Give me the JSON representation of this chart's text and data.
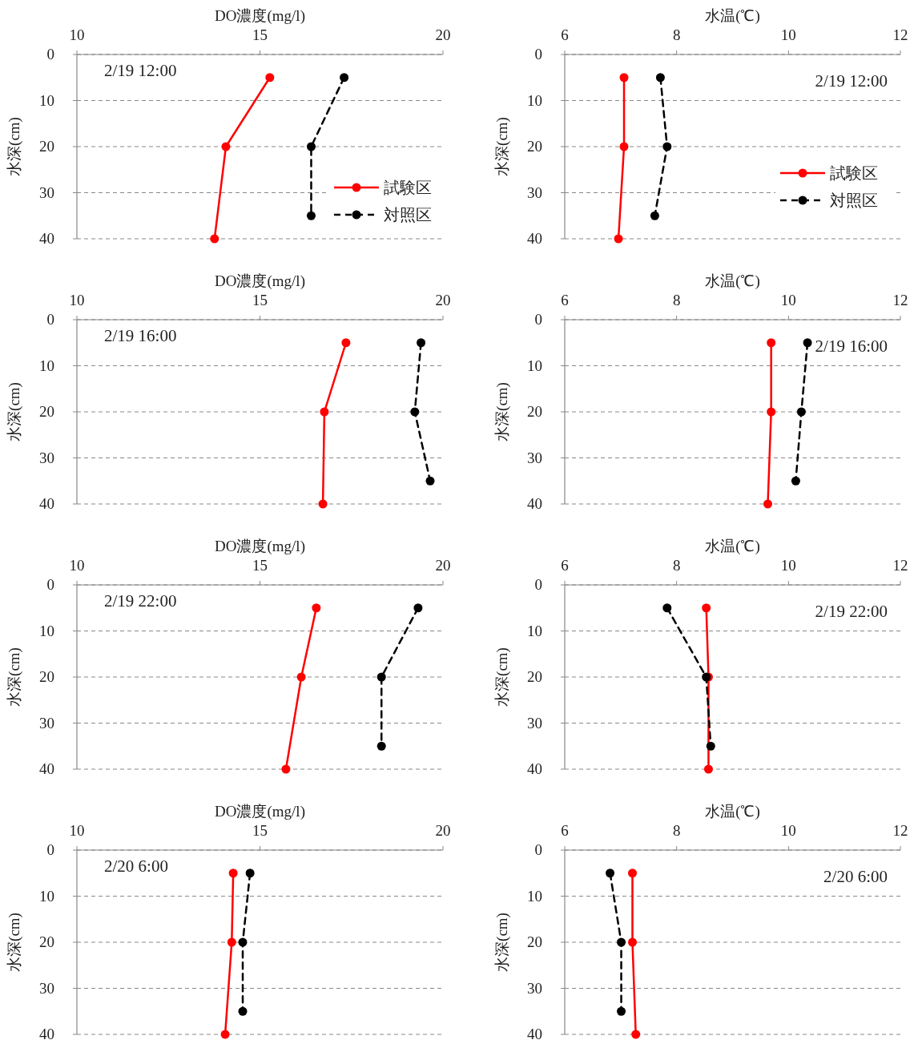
{
  "chart_data": [
    {
      "type": "line",
      "xlabel": "DO濃度(mg/l)",
      "ylabel": "水深(cm)",
      "xlim": [
        10,
        20
      ],
      "xticks": [
        10,
        15,
        20
      ],
      "ylim": [
        40,
        0
      ],
      "yticks": [
        0,
        10,
        20,
        30,
        40
      ],
      "grid": "y",
      "marker": "circle",
      "legend": "right",
      "annotations": [
        "2/19 12:00"
      ],
      "series": [
        {
          "name": "試験区",
          "color": "#ff0000",
          "line_style": "solid",
          "x": [
            15.27,
            14.07,
            13.76
          ],
          "values": [
            5,
            20,
            40
          ]
        },
        {
          "name": "対照区",
          "color": "#000000",
          "line_style": "dashed",
          "x": [
            17.3,
            16.4,
            16.4
          ],
          "values": [
            5,
            20,
            35
          ]
        }
      ]
    },
    {
      "type": "line",
      "xlabel": "水温(℃)",
      "ylabel": "水深(cm)",
      "xlim": [
        6,
        12
      ],
      "xticks": [
        6,
        8,
        10,
        12
      ],
      "ylim": [
        40,
        0
      ],
      "yticks": [
        0,
        10,
        20,
        30,
        40
      ],
      "grid": "y",
      "marker": "circle",
      "legend": "right",
      "annotations": [
        "2/19 12:00"
      ],
      "series": [
        {
          "name": "試験区",
          "color": "#ff0000",
          "line_style": "solid",
          "x": [
            7.06,
            7.06,
            6.96
          ],
          "values": [
            5,
            20,
            40
          ]
        },
        {
          "name": "対照区",
          "color": "#000000",
          "line_style": "dashed",
          "x": [
            7.71,
            7.83,
            7.61
          ],
          "values": [
            5,
            20,
            35
          ]
        }
      ]
    },
    {
      "type": "line",
      "xlabel": "DO濃度(mg/l)",
      "ylabel": "水深(cm)",
      "xlim": [
        10,
        20
      ],
      "xticks": [
        10,
        15,
        20
      ],
      "ylim": [
        40,
        0
      ],
      "yticks": [
        0,
        10,
        20,
        30,
        40
      ],
      "grid": "y",
      "marker": "circle",
      "annotations": [
        "2/19 16:00"
      ],
      "series": [
        {
          "color": "#ff0000",
          "line_style": "solid",
          "x": [
            17.35,
            16.76,
            16.72
          ],
          "values": [
            5,
            20,
            40
          ]
        },
        {
          "color": "#000000",
          "line_style": "dashed",
          "x": [
            19.4,
            19.23,
            19.65
          ],
          "values": [
            5,
            20,
            35
          ]
        }
      ]
    },
    {
      "type": "line",
      "xlabel": "水温(℃)",
      "ylabel": "水深(cm)",
      "xlim": [
        6,
        12
      ],
      "xticks": [
        6,
        8,
        10,
        12
      ],
      "ylim": [
        40,
        0
      ],
      "yticks": [
        0,
        10,
        20,
        30,
        40
      ],
      "grid": "y",
      "marker": "circle",
      "annotations": [
        "2/19 16:00"
      ],
      "series": [
        {
          "color": "#ff0000",
          "line_style": "solid",
          "x": [
            9.69,
            9.69,
            9.63
          ],
          "values": [
            5,
            20,
            40
          ]
        },
        {
          "color": "#000000",
          "line_style": "dashed",
          "x": [
            10.34,
            10.23,
            10.13
          ],
          "values": [
            5,
            20,
            35
          ]
        }
      ]
    },
    {
      "type": "line",
      "xlabel": "DO濃度(mg/l)",
      "ylabel": "水深(cm)",
      "xlim": [
        10,
        20
      ],
      "xticks": [
        10,
        15,
        20
      ],
      "ylim": [
        40,
        0
      ],
      "yticks": [
        0,
        10,
        20,
        30,
        40
      ],
      "grid": "y",
      "marker": "circle",
      "annotations": [
        "2/19 22:00"
      ],
      "series": [
        {
          "color": "#ff0000",
          "line_style": "solid",
          "x": [
            16.54,
            16.13,
            15.71
          ],
          "values": [
            5,
            20,
            40
          ]
        },
        {
          "color": "#000000",
          "line_style": "dashed",
          "x": [
            19.32,
            18.32,
            18.32
          ],
          "values": [
            5,
            20,
            35
          ]
        }
      ]
    },
    {
      "type": "line",
      "xlabel": "水温(℃)",
      "ylabel": "水深(cm)",
      "xlim": [
        6,
        12
      ],
      "xticks": [
        6,
        8,
        10,
        12
      ],
      "ylim": [
        40,
        0
      ],
      "yticks": [
        0,
        10,
        20,
        30,
        40
      ],
      "grid": "y",
      "marker": "circle",
      "annotations": [
        "2/19 22:00"
      ],
      "series": [
        {
          "color": "#ff0000",
          "line_style": "solid",
          "x": [
            8.53,
            8.57,
            8.57
          ],
          "values": [
            5,
            20,
            40
          ]
        },
        {
          "color": "#000000",
          "line_style": "dashed",
          "x": [
            7.83,
            8.53,
            8.61
          ],
          "values": [
            5,
            20,
            35
          ]
        }
      ]
    },
    {
      "type": "line",
      "xlabel": "DO濃度(mg/l)",
      "ylabel": "水深(cm)",
      "xlim": [
        10,
        20
      ],
      "xticks": [
        10,
        15,
        20
      ],
      "ylim": [
        40,
        0
      ],
      "yticks": [
        0,
        10,
        20,
        30,
        40
      ],
      "grid": "y",
      "marker": "circle",
      "annotations": [
        "2/20 6:00"
      ],
      "series": [
        {
          "color": "#ff0000",
          "line_style": "solid",
          "x": [
            14.27,
            14.23,
            14.05
          ],
          "values": [
            5,
            20,
            40
          ]
        },
        {
          "color": "#000000",
          "line_style": "dashed",
          "x": [
            14.73,
            14.53,
            14.53
          ],
          "values": [
            5,
            20,
            35
          ]
        }
      ]
    },
    {
      "type": "line",
      "xlabel": "水温(℃)",
      "ylabel": "水深(cm)",
      "xlim": [
        6,
        12
      ],
      "xticks": [
        6,
        8,
        10,
        12
      ],
      "ylim": [
        40,
        0
      ],
      "yticks": [
        0,
        10,
        20,
        30,
        40
      ],
      "grid": "y",
      "marker": "circle",
      "annotations": [
        "2/20 6:00"
      ],
      "series": [
        {
          "color": "#ff0000",
          "line_style": "solid",
          "x": [
            7.21,
            7.21,
            7.27
          ],
          "values": [
            5,
            20,
            40
          ]
        },
        {
          "color": "#000000",
          "line_style": "dashed",
          "x": [
            6.81,
            7.01,
            7.01
          ],
          "values": [
            5,
            20,
            35
          ]
        }
      ]
    }
  ]
}
